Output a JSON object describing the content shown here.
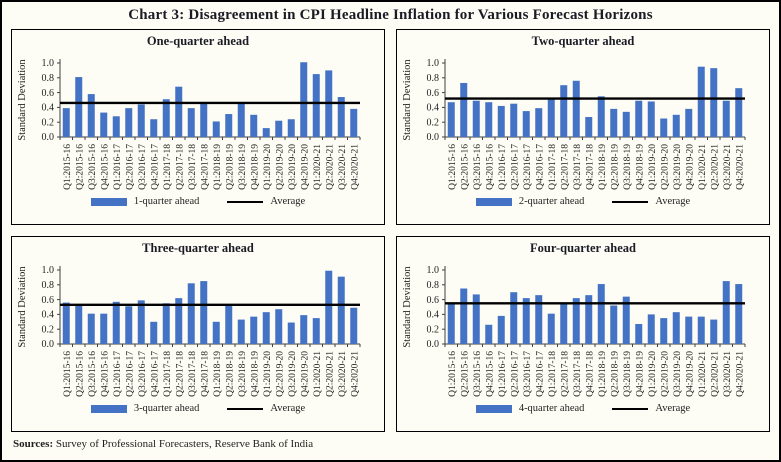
{
  "title": "Chart 3: Disagreement in CPI Headline Inflation for Various Forecast Horizons",
  "footer": {
    "sources_label": "Sources:",
    "sources_text": "Survey of Professional Forecasters, Reserve Bank of India"
  },
  "colors": {
    "bar": "#4472C4",
    "average_line": "#000000",
    "axis": "#404040",
    "text": "#1f1f1f",
    "background": "#FDFDF5",
    "border": "#000000"
  },
  "axis": {
    "ylabel": "Standard Deviation",
    "yticks": [
      0.0,
      0.2,
      0.4,
      0.6,
      0.8,
      1.0
    ],
    "ylim": [
      0,
      1.1
    ],
    "grid": false
  },
  "chart_data": [
    {
      "type": "bar",
      "title": "One-quarter ahead",
      "series_name": "1-quarter ahead",
      "average_label": "Average",
      "average": 0.46,
      "ylabel": "Standard Deviation",
      "xlabel": "",
      "ylim": [
        0,
        1.1
      ],
      "legend_position": "bottom",
      "grid": false,
      "categories": [
        "Q1:2015-16",
        "Q2:2015-16",
        "Q3:2015-16",
        "Q4:2015-16",
        "Q1:2016-17",
        "Q2:2016-17",
        "Q3:2016-17",
        "Q4:2016-17",
        "Q1:2017-18",
        "Q2:2017-18",
        "Q3:2017-18",
        "Q4:2017-18",
        "Q1:2018-19",
        "Q2:2018-19",
        "Q3:2018-19",
        "Q4:2018-19",
        "Q1:2019-20",
        "Q2:2019-20",
        "Q3:2019-20",
        "Q4:2019-20",
        "Q1:2020-21",
        "Q2:2020-21",
        "Q3:2020-21",
        "Q4:2020-21"
      ],
      "values": [
        0.39,
        0.81,
        0.58,
        0.33,
        0.28,
        0.39,
        0.44,
        0.24,
        0.51,
        0.68,
        0.39,
        0.45,
        0.21,
        0.31,
        0.46,
        0.3,
        0.12,
        0.22,
        0.24,
        1.01,
        0.85,
        0.9,
        0.54,
        0.38
      ]
    },
    {
      "type": "bar",
      "title": "Two-quarter ahead",
      "series_name": "2-quarter ahead",
      "average_label": "Average",
      "average": 0.52,
      "ylabel": "Standard Deviation",
      "xlabel": "",
      "ylim": [
        0,
        1.1
      ],
      "legend_position": "bottom",
      "grid": false,
      "categories": [
        "Q1:2015-16",
        "Q2:2015-16",
        "Q3:2015-16",
        "Q4:2015-16",
        "Q1:2016-17",
        "Q2:2016-17",
        "Q3:2016-17",
        "Q4:2016-17",
        "Q1:2017-18",
        "Q2:2017-18",
        "Q3:2017-18",
        "Q4:2017-18",
        "Q1:2018-19",
        "Q2:2018-19",
        "Q3:2018-19",
        "Q4:2018-19",
        "Q1:2019-20",
        "Q2:2019-20",
        "Q3:2019-20",
        "Q4:2019-20",
        "Q1:2020-21",
        "Q2:2020-21",
        "Q3:2020-21",
        "Q4:2020-21"
      ],
      "values": [
        0.47,
        0.73,
        0.49,
        0.47,
        0.42,
        0.45,
        0.35,
        0.39,
        0.52,
        0.7,
        0.76,
        0.27,
        0.55,
        0.38,
        0.34,
        0.49,
        0.48,
        0.25,
        0.3,
        0.38,
        0.95,
        0.93,
        0.49,
        0.66
      ]
    },
    {
      "type": "bar",
      "title": "Three-quarter ahead",
      "series_name": "3-quarter ahead",
      "average_label": "Average",
      "average": 0.53,
      "ylabel": "Standard Deviation",
      "xlabel": "",
      "ylim": [
        0,
        1.1
      ],
      "legend_position": "bottom",
      "grid": false,
      "categories": [
        "Q1:2015-16",
        "Q2:2015-16",
        "Q3:2015-16",
        "Q4:2015-16",
        "Q1:2016-17",
        "Q2:2016-17",
        "Q3:2016-17",
        "Q4:2016-17",
        "Q1:2017-18",
        "Q2:2017-18",
        "Q3:2017-18",
        "Q4:2017-18",
        "Q1:2018-19",
        "Q2:2018-19",
        "Q3:2018-19",
        "Q4:2018-19",
        "Q1:2019-20",
        "Q2:2019-20",
        "Q3:2019-20",
        "Q4:2019-20",
        "Q1:2020-21",
        "Q2:2020-21",
        "Q3:2020-21",
        "Q4:2020-21"
      ],
      "values": [
        0.56,
        0.53,
        0.41,
        0.41,
        0.57,
        0.51,
        0.59,
        0.3,
        0.55,
        0.62,
        0.82,
        0.85,
        0.3,
        0.52,
        0.33,
        0.37,
        0.43,
        0.47,
        0.29,
        0.39,
        0.35,
        0.99,
        0.91,
        0.49
      ]
    },
    {
      "type": "bar",
      "title": "Four-quarter ahead",
      "series_name": "4-quarter ahead",
      "average_label": "Average",
      "average": 0.55,
      "ylabel": "Standard Deviation",
      "xlabel": "",
      "ylim": [
        0,
        1.1
      ],
      "legend_position": "bottom",
      "grid": false,
      "categories": [
        "Q1:2015-16",
        "Q2:2015-16",
        "Q3:2015-16",
        "Q4:2015-16",
        "Q1:2016-17",
        "Q2:2016-17",
        "Q3:2016-17",
        "Q4:2016-17",
        "Q1:2017-18",
        "Q2:2017-18",
        "Q3:2017-18",
        "Q4:2017-18",
        "Q1:2018-19",
        "Q2:2018-19",
        "Q3:2018-19",
        "Q4:2018-19",
        "Q1:2019-20",
        "Q2:2019-20",
        "Q3:2019-20",
        "Q4:2019-20",
        "Q1:2020-21",
        "Q2:2020-21",
        "Q3:2020-21",
        "Q4:2020-21"
      ],
      "values": [
        0.55,
        0.75,
        0.67,
        0.26,
        0.38,
        0.7,
        0.62,
        0.66,
        0.41,
        0.55,
        0.62,
        0.66,
        0.81,
        0.52,
        0.64,
        0.27,
        0.4,
        0.35,
        0.43,
        0.37,
        0.37,
        0.33,
        0.85,
        0.81
      ]
    }
  ]
}
